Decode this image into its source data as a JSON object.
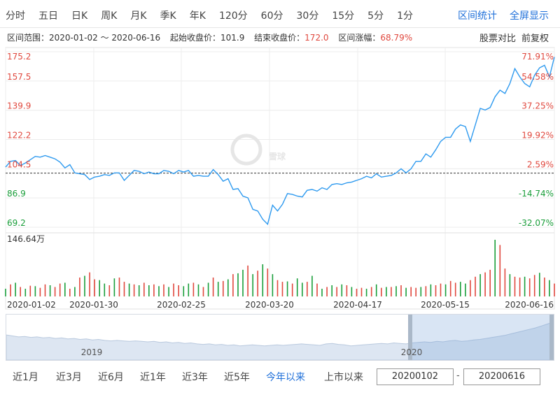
{
  "toolbar": {
    "periods": [
      "分时",
      "五日",
      "日K",
      "周K",
      "月K",
      "季K",
      "年K",
      "120分",
      "60分",
      "30分",
      "15分",
      "5分",
      "1分"
    ],
    "actions": [
      "区间统计",
      "全屏显示"
    ]
  },
  "info": {
    "range_label": "区间范围：",
    "range_value": "2020-01-02 ～ 2020-06-16",
    "start_label": "起始收盘价：",
    "start_value": "101.9",
    "end_label": "结束收盘价：",
    "end_value": "172.0",
    "change_label": "区间涨幅：",
    "change_value": "68.79%",
    "compare": "股票对比",
    "adjust": "前复权"
  },
  "watermark": "雪球",
  "chart_data": {
    "type": "line",
    "title": "",
    "xlabel": "",
    "ylabel": "",
    "ylim": [
      69.2,
      175.2
    ],
    "base_value": 101.9,
    "y_ticks_left": [
      "175.2",
      "157.5",
      "139.9",
      "122.2",
      "104.5",
      "86.9",
      "69.2"
    ],
    "y_ticks_right": [
      "71.91%",
      "54.58%",
      "37.25%",
      "19.92%",
      "2.59%",
      "-14.74%",
      "-32.07%"
    ],
    "x_ticks": [
      "2020-01-02",
      "2020-01-30",
      "2020-02-25",
      "2020-03-20",
      "2020-04-17",
      "2020-05-15",
      "2020-06-16"
    ],
    "series": [
      {
        "values": [
          105.5,
          109.0,
          109.5,
          106.5,
          108.0,
          110.0,
          112.0,
          111.5,
          112.5,
          111.5,
          110.5,
          108.5,
          105.0,
          107.0,
          102.0,
          101.5,
          101.0,
          98.0,
          99.5,
          100.0,
          101.0,
          100.5,
          102.0,
          102.0,
          97.5,
          100.5,
          103.5,
          103.0,
          101.5,
          102.5,
          101.5,
          101.5,
          103.5,
          103.0,
          101.5,
          103.5,
          102.5,
          103.5,
          100.0,
          100.5,
          100.0,
          100.0,
          104.0,
          101.0,
          97.0,
          98.5,
          92.0,
          92.5,
          88.0,
          87.0,
          80.0,
          79.0,
          74.0,
          71.0,
          82.5,
          79.0,
          83.0,
          89.5,
          89.0,
          88.0,
          87.5,
          91.5,
          92.0,
          91.0,
          93.0,
          92.0,
          95.0,
          95.5,
          95.0,
          96.0,
          96.5,
          97.5,
          98.5,
          100.0,
          99.0,
          101.5,
          99.5,
          100.0,
          100.5,
          102.0,
          104.5,
          102.0,
          104.5,
          109.0,
          109.0,
          113.5,
          111.5,
          116.0,
          121.0,
          123.5,
          123.5,
          128.5,
          131.0,
          130.0,
          121.0,
          131.0,
          141.0,
          140.0,
          141.5,
          148.0,
          152.0,
          150.0,
          156.0,
          165.0,
          160.0,
          156.0,
          154.0,
          161.0,
          165.5,
          167.0,
          160.0,
          172.0
        ]
      }
    ],
    "volume": {
      "label": "146.64万",
      "max": 146.64,
      "values": [
        18,
        28,
        32,
        22,
        18,
        25,
        24,
        20,
        28,
        26,
        22,
        30,
        32,
        18,
        22,
        44,
        48,
        56,
        40,
        38,
        30,
        26,
        42,
        44,
        34,
        30,
        28,
        26,
        32,
        26,
        28,
        24,
        28,
        22,
        30,
        26,
        24,
        30,
        32,
        28,
        22,
        32,
        44,
        34,
        36,
        40,
        52,
        54,
        62,
        72,
        52,
        60,
        75,
        65,
        52,
        38,
        34,
        35,
        30,
        42,
        32,
        34,
        48,
        30,
        18,
        22,
        26,
        22,
        28,
        26,
        22,
        18,
        20,
        18,
        22,
        28,
        20,
        22,
        22,
        24,
        26,
        20,
        22,
        20,
        22,
        24,
        28,
        26,
        30,
        28,
        36,
        32,
        34,
        30,
        38,
        46,
        52,
        56,
        62,
        132,
        120,
        65,
        52,
        46,
        44,
        46,
        42,
        50,
        55,
        44,
        38,
        30
      ],
      "colors": [
        "g",
        "r",
        "g",
        "r",
        "g",
        "r",
        "g",
        "r",
        "r",
        "g",
        "r",
        "r",
        "g",
        "r",
        "g",
        "r",
        "g",
        "r",
        "r",
        "g",
        "g",
        "r",
        "g",
        "r",
        "r",
        "g",
        "r",
        "g",
        "r",
        "g",
        "r",
        "g",
        "r",
        "g",
        "r",
        "r",
        "g",
        "g",
        "r",
        "g",
        "r",
        "g",
        "r",
        "g",
        "r",
        "g",
        "r",
        "g",
        "g",
        "r",
        "g",
        "r",
        "g",
        "r",
        "g",
        "r",
        "r",
        "g",
        "r",
        "g",
        "g",
        "r",
        "g",
        "r",
        "g",
        "r",
        "g",
        "r",
        "g",
        "r",
        "g",
        "r",
        "r",
        "g",
        "r",
        "g",
        "r",
        "g",
        "r",
        "g",
        "r",
        "g",
        "r",
        "r",
        "g",
        "r",
        "g",
        "r",
        "r",
        "g",
        "r",
        "r",
        "g",
        "g",
        "r",
        "r",
        "g",
        "r",
        "r",
        "g",
        "r",
        "r",
        "g",
        "r",
        "r",
        "g",
        "r",
        "r",
        "g",
        "r",
        "g",
        "r"
      ]
    },
    "navigator": {
      "labels": [
        "2019",
        "2020"
      ],
      "history_values": [
        42,
        40,
        38,
        39,
        37,
        38,
        36,
        37,
        35,
        36,
        34,
        35,
        33,
        34,
        32,
        33,
        31,
        30,
        31,
        30,
        29,
        30,
        29,
        28,
        29,
        27,
        28,
        26,
        27,
        25,
        26,
        24,
        23,
        24,
        22,
        23,
        21,
        22,
        20,
        21,
        22,
        21,
        20,
        21,
        22,
        21,
        22,
        23,
        24,
        23,
        22,
        21,
        24,
        25,
        23,
        22,
        20,
        21,
        22,
        23,
        24,
        25,
        24,
        26,
        25,
        24,
        26,
        27,
        28,
        27,
        29,
        28,
        30,
        31,
        29,
        30,
        32,
        33,
        35,
        37,
        39,
        41,
        44,
        47,
        50,
        53,
        56,
        60,
        64,
        68
      ]
    }
  },
  "bottom": {
    "ranges": [
      "近1月",
      "近3月",
      "近6月",
      "近1年",
      "近3年",
      "近5年",
      "今年以来",
      "上市以来"
    ],
    "active_index": 6,
    "start_date": "20200102",
    "dash": "-",
    "end_date": "20200616"
  },
  "colors": {
    "line": "#2e9aef",
    "up": "#e0483e",
    "down": "#1a9e3a",
    "accent": "#1e6fd9"
  }
}
